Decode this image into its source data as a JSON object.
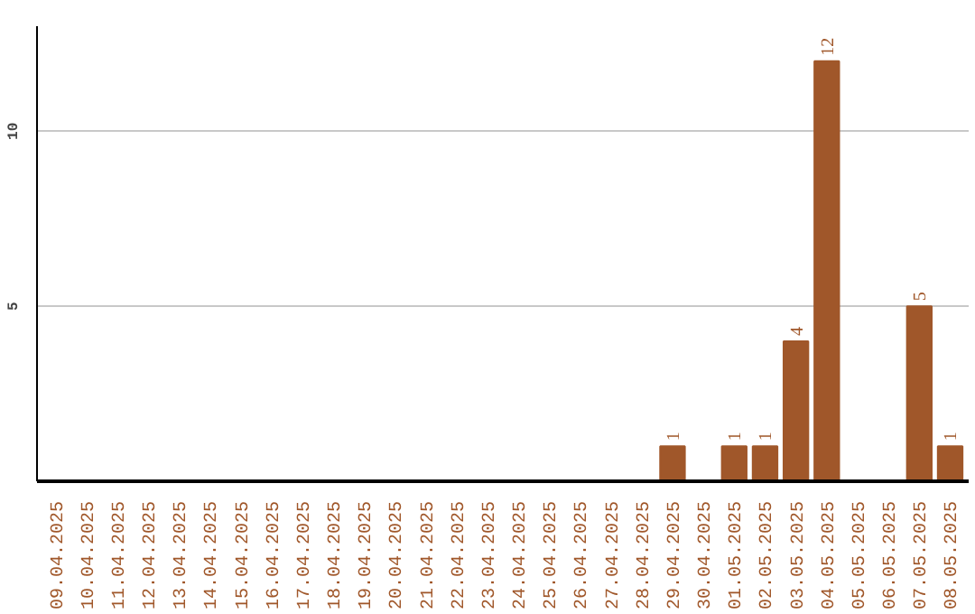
{
  "chart_data": {
    "type": "bar",
    "categories": [
      "09.04.2025",
      "10.04.2025",
      "11.04.2025",
      "12.04.2025",
      "13.04.2025",
      "14.04.2025",
      "15.04.2025",
      "16.04.2025",
      "17.04.2025",
      "18.04.2025",
      "19.04.2025",
      "20.04.2025",
      "21.04.2025",
      "22.04.2025",
      "23.04.2025",
      "24.04.2025",
      "25.04.2025",
      "26.04.2025",
      "27.04.2025",
      "28.04.2025",
      "29.04.2025",
      "30.04.2025",
      "01.05.2025",
      "02.05.2025",
      "03.05.2025",
      "04.05.2025",
      "05.05.2025",
      "06.05.2025",
      "07.05.2025",
      "08.05.2025"
    ],
    "values": [
      0,
      0,
      0,
      0,
      0,
      0,
      0,
      0,
      0,
      0,
      0,
      0,
      0,
      0,
      0,
      0,
      0,
      0,
      0,
      0,
      1,
      0,
      1,
      1,
      4,
      12,
      0,
      0,
      5,
      1
    ],
    "value_labels": [
      null,
      null,
      null,
      null,
      null,
      null,
      null,
      null,
      null,
      null,
      null,
      null,
      null,
      null,
      null,
      null,
      null,
      null,
      null,
      null,
      "1",
      null,
      "1",
      "1",
      "4",
      "12",
      null,
      null,
      "5",
      "1"
    ],
    "color": "#a0572a",
    "ylim": [
      0,
      13
    ],
    "yticks": [
      5,
      10
    ],
    "grid": "y"
  }
}
